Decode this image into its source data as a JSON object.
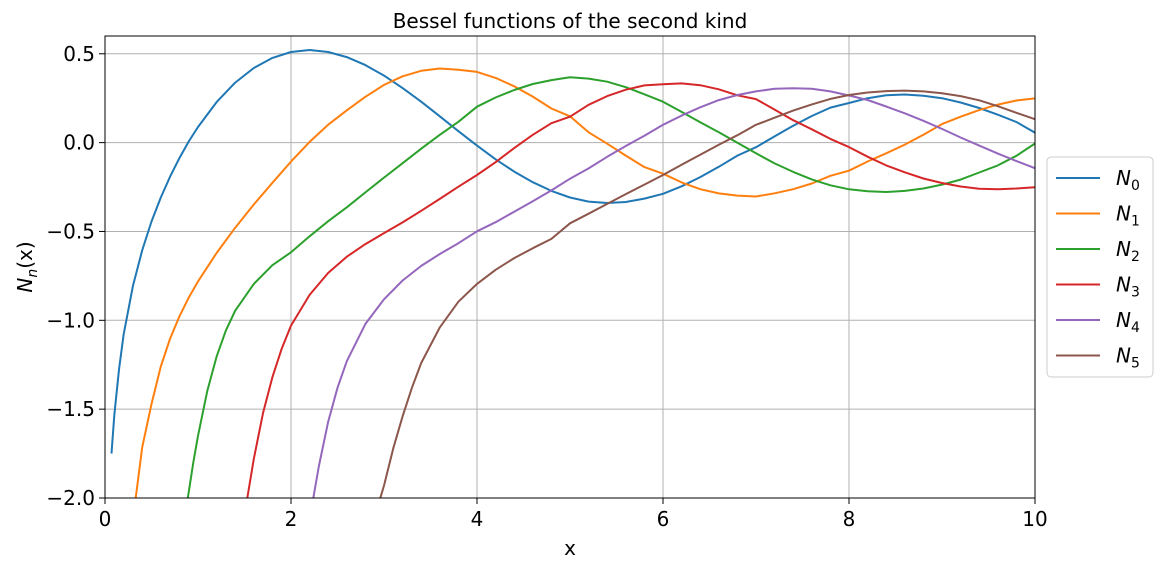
{
  "chart_data": {
    "type": "line",
    "title": "Bessel functions of the second kind",
    "xlabel": "x",
    "ylabel": "N",
    "ylabel_sub": "n",
    "ylabel_suffix": "(x)",
    "xlim": [
      0,
      10
    ],
    "ylim": [
      -2.0,
      0.6
    ],
    "xticks": [
      0,
      2,
      4,
      6,
      8,
      10
    ],
    "xtick_labels": [
      "0",
      "2",
      "4",
      "6",
      "8",
      "10"
    ],
    "yticks": [
      0.5,
      0.0,
      -0.5,
      -1.0,
      -1.5,
      -2.0
    ],
    "ytick_labels": [
      "0.5",
      "0.0",
      "−0.5",
      "−1.0",
      "−1.5",
      "−2.0"
    ],
    "grid": true,
    "legend_position": "center-right-outside",
    "series": [
      {
        "name": "N",
        "sub": "0",
        "color": "#1f77b4",
        "x": [
          0.07,
          0.1,
          0.15,
          0.2,
          0.3,
          0.4,
          0.5,
          0.6,
          0.7,
          0.8,
          0.9,
          1.0,
          1.2,
          1.4,
          1.6,
          1.8,
          2.0,
          2.2,
          2.4,
          2.6,
          2.8,
          3.0,
          3.2,
          3.4,
          3.6,
          3.8,
          4.0,
          4.2,
          4.4,
          4.6,
          4.8,
          5.0,
          5.2,
          5.4,
          5.6,
          5.8,
          6.0,
          6.2,
          6.4,
          6.6,
          6.8,
          7.0,
          7.2,
          7.4,
          7.6,
          7.8,
          8.0,
          8.2,
          8.4,
          8.6,
          8.8,
          9.0,
          9.2,
          9.4,
          9.6,
          9.8,
          10.0
        ],
        "y": [
          -1.75,
          -1.534,
          -1.277,
          -1.081,
          -0.807,
          -0.606,
          -0.444,
          -0.309,
          -0.191,
          -0.087,
          0.006,
          0.088,
          0.228,
          0.338,
          0.42,
          0.477,
          0.51,
          0.521,
          0.51,
          0.481,
          0.436,
          0.377,
          0.307,
          0.23,
          0.148,
          0.064,
          -0.017,
          -0.094,
          -0.163,
          -0.223,
          -0.272,
          -0.309,
          -0.332,
          -0.34,
          -0.334,
          -0.315,
          -0.288,
          -0.246,
          -0.194,
          -0.136,
          -0.073,
          -0.026,
          0.035,
          0.095,
          0.15,
          0.197,
          0.223,
          0.25,
          0.266,
          0.271,
          0.264,
          0.25,
          0.226,
          0.195,
          0.157,
          0.116,
          0.056
        ]
      },
      {
        "name": "N",
        "sub": "1",
        "color": "#ff7f0e",
        "x": [
          0.33,
          0.4,
          0.5,
          0.6,
          0.7,
          0.8,
          0.9,
          1.0,
          1.2,
          1.4,
          1.6,
          1.8,
          2.0,
          2.2,
          2.4,
          2.6,
          2.8,
          3.0,
          3.2,
          3.4,
          3.6,
          3.8,
          4.0,
          4.2,
          4.4,
          4.6,
          4.8,
          5.0,
          5.2,
          5.4,
          5.6,
          5.8,
          6.0,
          6.2,
          6.4,
          6.6,
          6.8,
          7.0,
          7.2,
          7.4,
          7.6,
          7.8,
          8.0,
          8.2,
          8.4,
          8.6,
          8.8,
          9.0,
          9.2,
          9.4,
          9.6,
          9.8,
          10.0
        ],
        "y": [
          -2.0,
          -1.715,
          -1.471,
          -1.26,
          -1.103,
          -0.978,
          -0.873,
          -0.781,
          -0.621,
          -0.479,
          -0.348,
          -0.226,
          -0.107,
          0.004,
          0.101,
          0.182,
          0.258,
          0.325,
          0.373,
          0.404,
          0.417,
          0.41,
          0.398,
          0.364,
          0.317,
          0.259,
          0.192,
          0.148,
          0.058,
          -0.006,
          -0.073,
          -0.138,
          -0.175,
          -0.224,
          -0.262,
          -0.286,
          -0.298,
          -0.303,
          -0.285,
          -0.262,
          -0.23,
          -0.187,
          -0.158,
          -0.106,
          -0.06,
          -0.011,
          0.044,
          0.104,
          0.146,
          0.183,
          0.214,
          0.237,
          0.249
        ]
      },
      {
        "name": "N",
        "sub": "2",
        "color": "#2ca02c",
        "x": [
          0.89,
          0.95,
          1.0,
          1.1,
          1.2,
          1.3,
          1.4,
          1.6,
          1.8,
          2.0,
          2.2,
          2.4,
          2.6,
          2.8,
          3.0,
          3.2,
          3.4,
          3.6,
          3.8,
          4.0,
          4.2,
          4.4,
          4.6,
          4.8,
          5.0,
          5.2,
          5.4,
          5.6,
          5.8,
          6.0,
          6.2,
          6.4,
          6.6,
          6.8,
          7.0,
          7.2,
          7.4,
          7.6,
          7.8,
          8.0,
          8.2,
          8.4,
          8.6,
          8.8,
          9.0,
          9.2,
          9.4,
          9.6,
          9.8,
          10.0
        ],
        "y": [
          -2.0,
          -1.8,
          -1.65,
          -1.397,
          -1.204,
          -1.057,
          -0.946,
          -0.795,
          -0.69,
          -0.617,
          -0.527,
          -0.442,
          -0.364,
          -0.28,
          -0.197,
          -0.116,
          -0.034,
          0.044,
          0.117,
          0.202,
          0.254,
          0.296,
          0.33,
          0.352,
          0.368,
          0.36,
          0.343,
          0.312,
          0.272,
          0.23,
          0.173,
          0.115,
          0.058,
          -0.001,
          -0.06,
          -0.117,
          -0.165,
          -0.207,
          -0.24,
          -0.263,
          -0.274,
          -0.278,
          -0.272,
          -0.258,
          -0.236,
          -0.208,
          -0.168,
          -0.128,
          -0.074,
          -0.005
        ]
      },
      {
        "name": "N",
        "sub": "3",
        "color": "#d62728",
        "x": [
          1.53,
          1.6,
          1.7,
          1.8,
          1.9,
          2.0,
          2.2,
          2.4,
          2.6,
          2.8,
          3.0,
          3.2,
          3.4,
          3.6,
          3.8,
          4.0,
          4.2,
          4.4,
          4.6,
          4.8,
          5.0,
          5.2,
          5.4,
          5.6,
          5.8,
          6.0,
          6.2,
          6.4,
          6.6,
          6.8,
          7.0,
          7.2,
          7.4,
          7.6,
          7.8,
          8.0,
          8.2,
          8.4,
          8.6,
          8.8,
          9.0,
          9.2,
          9.4,
          9.6,
          9.8,
          10.0
        ],
        "y": [
          -2.0,
          -1.78,
          -1.52,
          -1.32,
          -1.16,
          -1.03,
          -0.857,
          -0.733,
          -0.642,
          -0.571,
          -0.509,
          -0.449,
          -0.384,
          -0.317,
          -0.248,
          -0.182,
          -0.11,
          -0.031,
          0.044,
          0.109,
          0.146,
          0.213,
          0.262,
          0.298,
          0.322,
          0.329,
          0.333,
          0.323,
          0.3,
          0.266,
          0.245,
          0.186,
          0.126,
          0.075,
          0.021,
          -0.025,
          -0.079,
          -0.128,
          -0.167,
          -0.202,
          -0.227,
          -0.247,
          -0.26,
          -0.263,
          -0.258,
          -0.251
        ]
      },
      {
        "name": "N",
        "sub": "4",
        "color": "#9467bd",
        "x": [
          2.24,
          2.3,
          2.4,
          2.5,
          2.6,
          2.8,
          3.0,
          3.2,
          3.4,
          3.6,
          3.8,
          4.0,
          4.2,
          4.4,
          4.6,
          4.8,
          5.0,
          5.2,
          5.4,
          5.6,
          5.8,
          6.0,
          6.2,
          6.4,
          6.6,
          6.8,
          7.0,
          7.2,
          7.4,
          7.6,
          7.8,
          8.0,
          8.2,
          8.4,
          8.6,
          8.8,
          9.0,
          9.2,
          9.4,
          9.6,
          9.8,
          10.0
        ],
        "y": [
          -2.0,
          -1.82,
          -1.57,
          -1.38,
          -1.23,
          -1.02,
          -0.882,
          -0.776,
          -0.694,
          -0.627,
          -0.566,
          -0.499,
          -0.448,
          -0.389,
          -0.33,
          -0.269,
          -0.203,
          -0.145,
          -0.08,
          -0.019,
          0.039,
          0.1,
          0.152,
          0.199,
          0.239,
          0.268,
          0.288,
          0.303,
          0.306,
          0.303,
          0.288,
          0.265,
          0.24,
          0.203,
          0.165,
          0.123,
          0.077,
          0.029,
          -0.017,
          -0.062,
          -0.104,
          -0.144
        ]
      },
      {
        "name": "N",
        "sub": "5",
        "color": "#8c564b",
        "x": [
          2.96,
          3.0,
          3.1,
          3.2,
          3.3,
          3.4,
          3.6,
          3.8,
          4.0,
          4.2,
          4.4,
          4.6,
          4.8,
          5.0,
          5.2,
          5.4,
          5.6,
          5.8,
          6.0,
          6.2,
          6.4,
          6.6,
          6.8,
          7.0,
          7.2,
          7.4,
          7.6,
          7.8,
          8.0,
          8.2,
          8.4,
          8.6,
          8.8,
          9.0,
          9.2,
          9.4,
          9.6,
          9.8,
          10.0
        ],
        "y": [
          -2.0,
          -1.93,
          -1.72,
          -1.54,
          -1.38,
          -1.24,
          -1.04,
          -0.895,
          -0.795,
          -0.716,
          -0.65,
          -0.594,
          -0.542,
          -0.454,
          -0.4,
          -0.345,
          -0.29,
          -0.236,
          -0.182,
          -0.125,
          -0.068,
          -0.012,
          0.042,
          0.1,
          0.14,
          0.18,
          0.215,
          0.246,
          0.268,
          0.282,
          0.29,
          0.293,
          0.288,
          0.278,
          0.262,
          0.238,
          0.205,
          0.168,
          0.132
        ]
      }
    ]
  }
}
